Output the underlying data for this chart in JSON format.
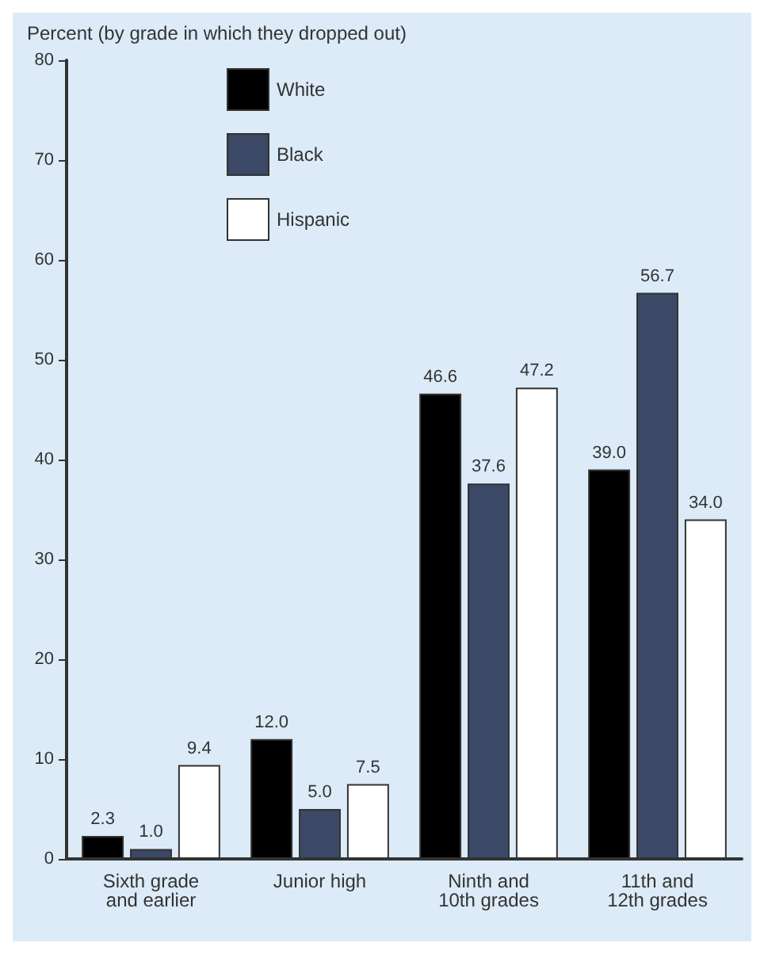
{
  "chart_data": {
    "type": "bar",
    "title": "Percent (by grade in which they dropped out)",
    "categories": [
      "Sixth grade\nand earlier",
      "Junior high",
      "Ninth and\n10th grades",
      "11th and\n12th grades"
    ],
    "series": [
      {
        "name": "White",
        "color": "#000000",
        "values": [
          2.3,
          12.0,
          46.6,
          39.0
        ],
        "value_labels": [
          "2.3",
          "12.0",
          "46.6",
          "39.0"
        ]
      },
      {
        "name": "Black",
        "color": "#3b4866",
        "values": [
          1.0,
          5.0,
          37.6,
          56.7
        ],
        "value_labels": [
          "1.0",
          "5.0",
          "37.6",
          "56.7"
        ]
      },
      {
        "name": "Hispanic",
        "color": "#ffffff",
        "values": [
          9.4,
          7.5,
          47.2,
          34.0
        ],
        "value_labels": [
          "9.4",
          "7.5",
          "47.2",
          "34.0"
        ]
      }
    ],
    "ylim": [
      0,
      80
    ],
    "yticks": [
      0,
      10,
      20,
      30,
      40,
      50,
      60,
      70,
      80
    ],
    "grid": false,
    "legend": "top left"
  }
}
